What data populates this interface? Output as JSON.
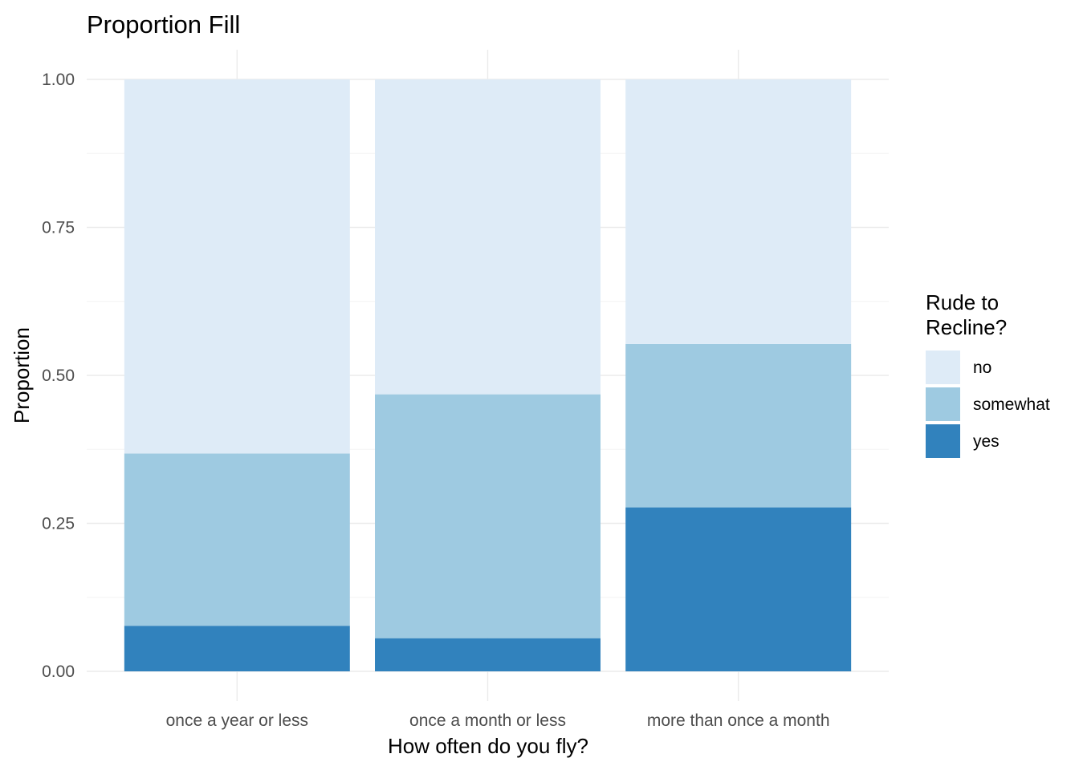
{
  "chart_data": {
    "type": "bar",
    "stacked": true,
    "position": "fill",
    "title": "Proportion Fill",
    "xlabel": "How often do you fly?",
    "ylabel": "Proportion",
    "ylim": [
      0,
      1
    ],
    "yticks": [
      "0.00",
      "0.25",
      "0.50",
      "0.75",
      "1.00"
    ],
    "categories": [
      "once a year or less",
      "once a month or less",
      "more than once a month"
    ],
    "legend": {
      "title_lines": [
        "Rude to",
        "Recline?"
      ],
      "placement": "right"
    },
    "grid": true,
    "series": [
      {
        "name": "no",
        "color": "#deebf7",
        "values": [
          0.632,
          0.532,
          0.447
        ]
      },
      {
        "name": "somewhat",
        "color": "#9ecae1",
        "values": [
          0.291,
          0.412,
          0.276
        ]
      },
      {
        "name": "yes",
        "color": "#3182bd",
        "values": [
          0.077,
          0.056,
          0.277
        ]
      }
    ]
  }
}
